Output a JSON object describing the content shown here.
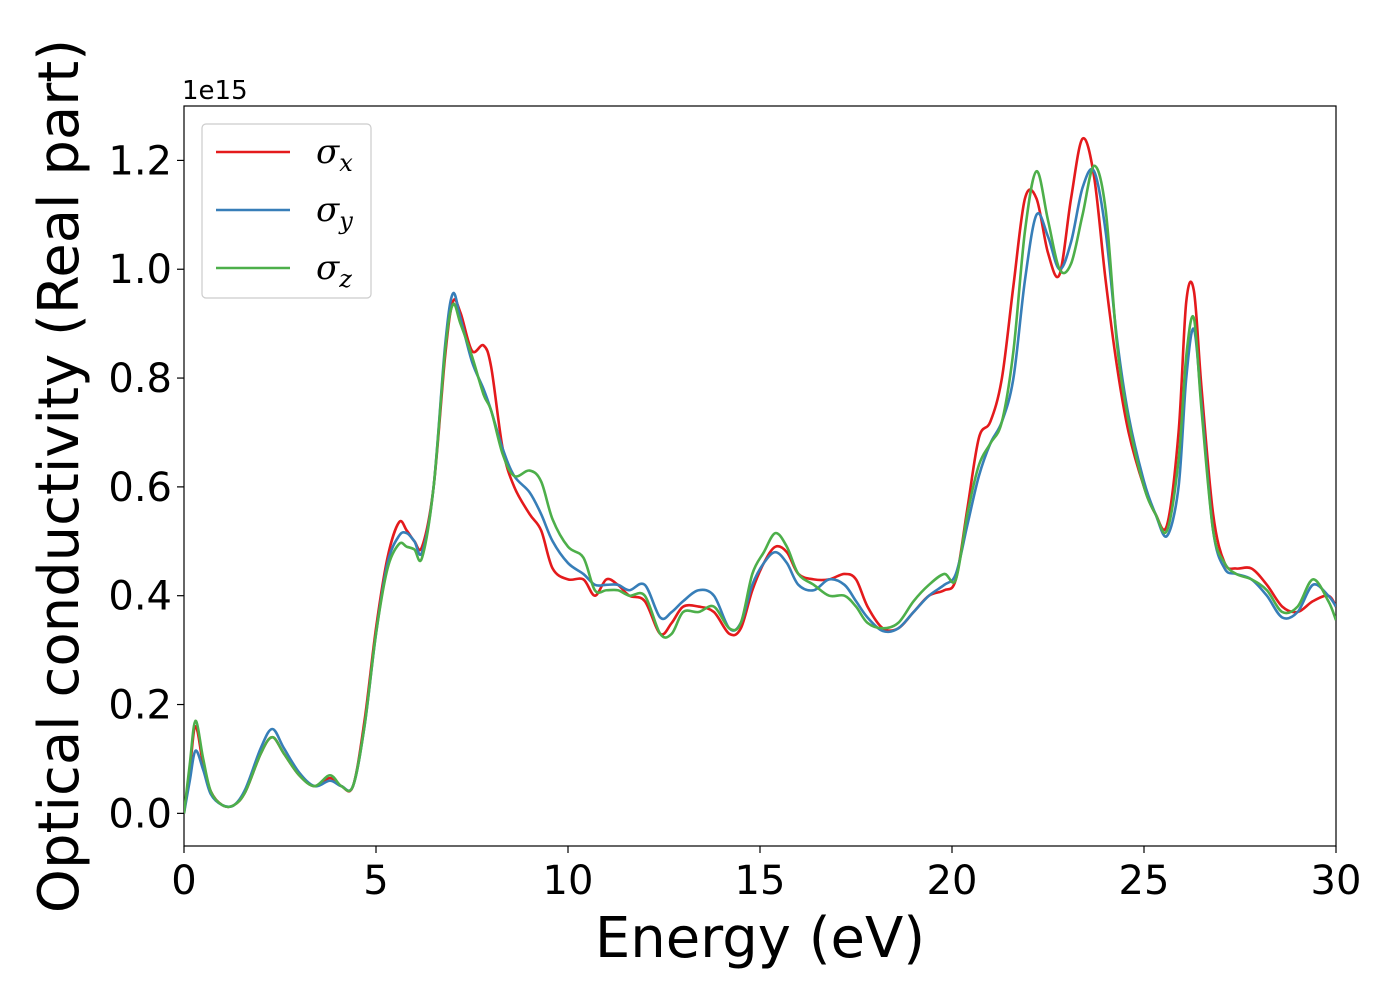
{
  "chart_data": {
    "type": "line",
    "xlabel": "Energy (eV)",
    "ylabel": "Optical conductivity (Real part)",
    "y_offset_label": "1e15",
    "xlim": [
      0,
      30
    ],
    "ylim": [
      -0.06,
      1.3
    ],
    "x_ticks": [
      0,
      5,
      10,
      15,
      20,
      25,
      30
    ],
    "x_tick_labels": [
      "0",
      "5",
      "10",
      "15",
      "20",
      "25",
      "30"
    ],
    "y_ticks": [
      0.0,
      0.2,
      0.4,
      0.6,
      0.8,
      1.0,
      1.2
    ],
    "y_tick_labels": [
      "0.0",
      "0.2",
      "0.4",
      "0.6",
      "0.8",
      "1.0",
      "1.2"
    ],
    "grid": false,
    "legend_position": "top-left",
    "series": [
      {
        "name": "σx",
        "legend_symbol": "σ",
        "legend_sub": "x",
        "color": "#e41a1c",
        "x": [
          0,
          0.15,
          0.3,
          0.5,
          0.7,
          1.0,
          1.3,
          1.6,
          2.0,
          2.3,
          2.6,
          3.0,
          3.4,
          3.8,
          4.1,
          4.4,
          4.7,
          5.0,
          5.3,
          5.6,
          5.8,
          6.0,
          6.2,
          6.5,
          6.8,
          7.0,
          7.2,
          7.5,
          7.8,
          8.0,
          8.3,
          8.6,
          9.0,
          9.3,
          9.6,
          10.0,
          10.4,
          10.7,
          11.0,
          11.3,
          11.6,
          12.0,
          12.4,
          12.7,
          13.0,
          13.4,
          13.8,
          14.2,
          14.5,
          14.8,
          15.1,
          15.4,
          15.7,
          16.0,
          16.4,
          16.8,
          17.2,
          17.5,
          17.8,
          18.2,
          18.6,
          19.0,
          19.4,
          19.8,
          20.1,
          20.4,
          20.7,
          21.0,
          21.3,
          21.6,
          21.9,
          22.2,
          22.5,
          22.8,
          23.1,
          23.4,
          23.7,
          24.0,
          24.3,
          24.6,
          25.0,
          25.3,
          25.6,
          25.9,
          26.1,
          26.3,
          26.5,
          26.8,
          27.1,
          27.4,
          27.8,
          28.2,
          28.6,
          29.0,
          29.4,
          29.8,
          30.0
        ],
        "y": [
          0.0,
          0.08,
          0.16,
          0.09,
          0.04,
          0.015,
          0.015,
          0.04,
          0.11,
          0.14,
          0.11,
          0.07,
          0.05,
          0.065,
          0.05,
          0.05,
          0.17,
          0.34,
          0.47,
          0.535,
          0.52,
          0.5,
          0.49,
          0.6,
          0.84,
          0.94,
          0.92,
          0.85,
          0.86,
          0.82,
          0.67,
          0.6,
          0.55,
          0.52,
          0.45,
          0.43,
          0.43,
          0.4,
          0.43,
          0.42,
          0.4,
          0.39,
          0.33,
          0.35,
          0.38,
          0.38,
          0.37,
          0.33,
          0.34,
          0.41,
          0.46,
          0.49,
          0.48,
          0.44,
          0.43,
          0.43,
          0.44,
          0.43,
          0.38,
          0.34,
          0.34,
          0.37,
          0.4,
          0.41,
          0.43,
          0.56,
          0.69,
          0.72,
          0.8,
          0.97,
          1.13,
          1.13,
          1.03,
          0.99,
          1.13,
          1.24,
          1.17,
          0.98,
          0.82,
          0.7,
          0.6,
          0.55,
          0.53,
          0.7,
          0.94,
          0.96,
          0.78,
          0.55,
          0.46,
          0.45,
          0.45,
          0.42,
          0.38,
          0.37,
          0.39,
          0.4,
          0.38
        ]
      },
      {
        "name": "σy",
        "legend_symbol": "σ",
        "legend_sub": "y",
        "color": "#377eb8",
        "x": [
          0,
          0.15,
          0.3,
          0.5,
          0.7,
          1.0,
          1.3,
          1.6,
          2.0,
          2.3,
          2.6,
          3.0,
          3.4,
          3.8,
          4.1,
          4.4,
          4.7,
          5.0,
          5.3,
          5.6,
          5.8,
          6.0,
          6.2,
          6.5,
          6.8,
          7.0,
          7.2,
          7.5,
          7.8,
          8.0,
          8.3,
          8.6,
          9.0,
          9.3,
          9.6,
          10.0,
          10.4,
          10.7,
          11.0,
          11.3,
          11.6,
          12.0,
          12.4,
          12.7,
          13.0,
          13.4,
          13.8,
          14.2,
          14.5,
          14.8,
          15.1,
          15.4,
          15.7,
          16.0,
          16.4,
          16.8,
          17.2,
          17.5,
          17.8,
          18.2,
          18.6,
          19.0,
          19.4,
          19.8,
          20.1,
          20.4,
          20.7,
          21.0,
          21.3,
          21.6,
          21.9,
          22.2,
          22.5,
          22.8,
          23.1,
          23.4,
          23.7,
          24.0,
          24.3,
          24.6,
          25.0,
          25.3,
          25.6,
          25.9,
          26.1,
          26.3,
          26.5,
          26.8,
          27.1,
          27.4,
          27.8,
          28.2,
          28.6,
          29.0,
          29.4,
          29.8,
          30.0
        ],
        "y": [
          0.0,
          0.06,
          0.115,
          0.08,
          0.035,
          0.015,
          0.015,
          0.045,
          0.12,
          0.155,
          0.12,
          0.075,
          0.05,
          0.06,
          0.05,
          0.05,
          0.16,
          0.33,
          0.46,
          0.51,
          0.515,
          0.5,
          0.48,
          0.6,
          0.86,
          0.955,
          0.91,
          0.83,
          0.78,
          0.74,
          0.67,
          0.62,
          0.59,
          0.55,
          0.5,
          0.46,
          0.44,
          0.42,
          0.42,
          0.42,
          0.41,
          0.42,
          0.36,
          0.37,
          0.39,
          0.41,
          0.4,
          0.34,
          0.35,
          0.42,
          0.46,
          0.48,
          0.46,
          0.42,
          0.41,
          0.43,
          0.42,
          0.39,
          0.36,
          0.335,
          0.34,
          0.37,
          0.4,
          0.42,
          0.44,
          0.53,
          0.62,
          0.68,
          0.72,
          0.8,
          0.98,
          1.1,
          1.06,
          1.0,
          1.05,
          1.15,
          1.18,
          1.07,
          0.87,
          0.73,
          0.61,
          0.55,
          0.51,
          0.6,
          0.8,
          0.89,
          0.75,
          0.52,
          0.45,
          0.44,
          0.43,
          0.4,
          0.36,
          0.37,
          0.42,
          0.4,
          0.38
        ]
      },
      {
        "name": "σz",
        "legend_symbol": "σ",
        "legend_sub": "z",
        "color": "#4daf4a",
        "x": [
          0,
          0.15,
          0.3,
          0.5,
          0.7,
          1.0,
          1.3,
          1.6,
          2.0,
          2.3,
          2.6,
          3.0,
          3.4,
          3.8,
          4.1,
          4.4,
          4.7,
          5.0,
          5.3,
          5.6,
          5.8,
          6.0,
          6.2,
          6.5,
          6.8,
          7.0,
          7.2,
          7.5,
          7.8,
          8.0,
          8.3,
          8.6,
          9.0,
          9.3,
          9.6,
          10.0,
          10.4,
          10.7,
          11.0,
          11.3,
          11.6,
          12.0,
          12.4,
          12.7,
          13.0,
          13.4,
          13.8,
          14.2,
          14.5,
          14.8,
          15.1,
          15.4,
          15.7,
          16.0,
          16.4,
          16.8,
          17.2,
          17.5,
          17.8,
          18.2,
          18.6,
          19.0,
          19.4,
          19.8,
          20.1,
          20.4,
          20.7,
          21.0,
          21.3,
          21.6,
          21.9,
          22.2,
          22.5,
          22.8,
          23.1,
          23.4,
          23.7,
          24.0,
          24.3,
          24.6,
          25.0,
          25.3,
          25.6,
          25.9,
          26.1,
          26.3,
          26.5,
          26.8,
          27.1,
          27.4,
          27.8,
          28.2,
          28.6,
          29.0,
          29.4,
          29.8,
          30.0
        ],
        "y": [
          0.0,
          0.09,
          0.17,
          0.1,
          0.04,
          0.015,
          0.015,
          0.04,
          0.11,
          0.14,
          0.11,
          0.07,
          0.05,
          0.07,
          0.05,
          0.05,
          0.16,
          0.33,
          0.45,
          0.495,
          0.49,
          0.485,
          0.47,
          0.6,
          0.85,
          0.935,
          0.9,
          0.84,
          0.77,
          0.74,
          0.66,
          0.62,
          0.63,
          0.61,
          0.54,
          0.49,
          0.47,
          0.41,
          0.41,
          0.41,
          0.4,
          0.4,
          0.33,
          0.33,
          0.37,
          0.37,
          0.38,
          0.34,
          0.35,
          0.44,
          0.48,
          0.515,
          0.49,
          0.44,
          0.42,
          0.4,
          0.4,
          0.38,
          0.35,
          0.34,
          0.35,
          0.39,
          0.42,
          0.44,
          0.43,
          0.55,
          0.64,
          0.68,
          0.72,
          0.85,
          1.07,
          1.18,
          1.09,
          1.0,
          1.01,
          1.1,
          1.19,
          1.11,
          0.86,
          0.72,
          0.6,
          0.55,
          0.52,
          0.65,
          0.84,
          0.91,
          0.74,
          0.52,
          0.46,
          0.44,
          0.43,
          0.41,
          0.37,
          0.38,
          0.43,
          0.39,
          0.355
        ]
      }
    ]
  }
}
